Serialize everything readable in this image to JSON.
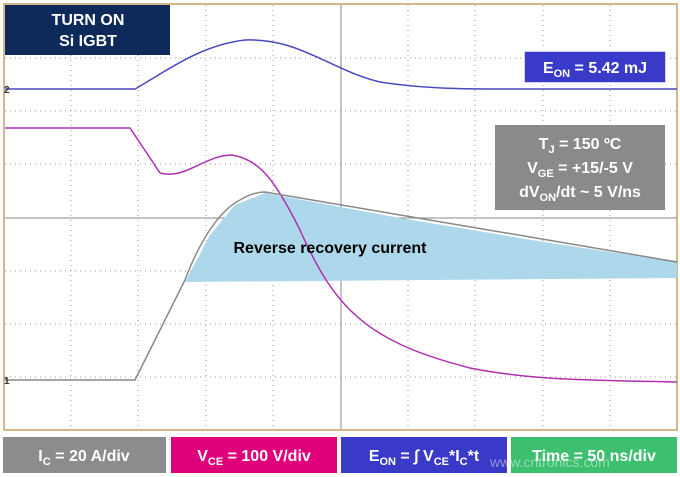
{
  "title": {
    "lines": [
      "TURN ON",
      "Si IGBT"
    ]
  },
  "energy_label": {
    "parts": [
      "E",
      "ON",
      " = 5.42 mJ"
    ]
  },
  "conditions": [
    {
      "parts": [
        "T",
        "J",
        " = 150 ºC"
      ]
    },
    {
      "parts": [
        "V",
        "GE",
        " = +15/-5 V"
      ]
    },
    {
      "parts": [
        "dV",
        "ON",
        "/dt ~ 5 V/ns"
      ]
    }
  ],
  "annotation": "Reverse recovery current",
  "channel_markers": [
    "2",
    "1"
  ],
  "scales": [
    {
      "parts": [
        "I",
        "C",
        " = 20 A/div"
      ]
    },
    {
      "parts": [
        "V",
        "CE",
        " = 100 V/div"
      ]
    },
    {
      "parts": [
        "E",
        "ON",
        " = ∫ V",
        "CE",
        "*I",
        "C",
        "*t"
      ]
    },
    {
      "parts": [
        "Time = 50 ns/div"
      ]
    }
  ],
  "watermark": "www.cntronics.com"
}
